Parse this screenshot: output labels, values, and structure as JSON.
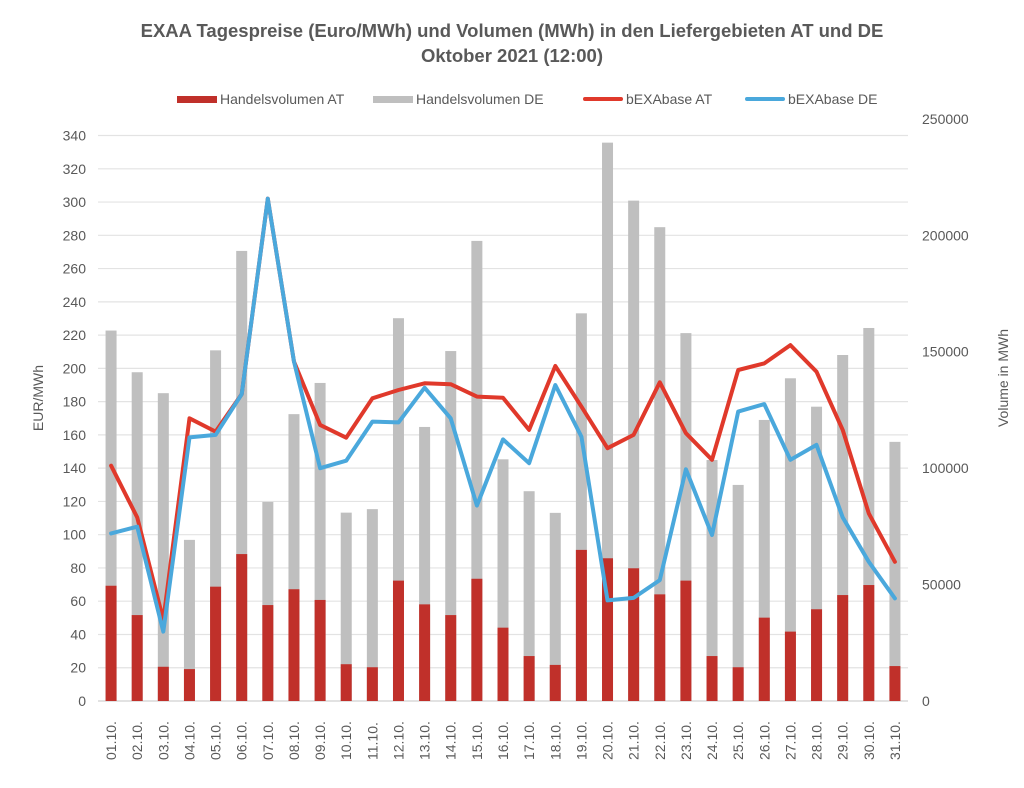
{
  "chart_data": {
    "type": "bar+line",
    "title": "EXAA Tagespreise (Euro/MWh) und Volumen (MWh) in den Liefergebieten AT und DE",
    "subtitle": "Oktober 2021 (12:00)",
    "ylabel_left": "EUR/MWh",
    "ylabel_right": "Volume in MWh",
    "ylim_left": [
      0,
      350
    ],
    "yticks_left": [
      0,
      20,
      40,
      60,
      80,
      100,
      120,
      140,
      160,
      180,
      200,
      220,
      240,
      260,
      280,
      300,
      320,
      340
    ],
    "ylim_right": [
      0,
      250000
    ],
    "yticks_right": [
      0,
      50000,
      100000,
      150000,
      200000,
      250000
    ],
    "grid": true,
    "legend_position": "top",
    "categories": [
      "01.10.",
      "02.10.",
      "03.10.",
      "04.10.",
      "05.10.",
      "06.10.",
      "07.10.",
      "08.10.",
      "09.10.",
      "10.10.",
      "11.10.",
      "12.10.",
      "13.10.",
      "14.10.",
      "15.10.",
      "16.10.",
      "17.10.",
      "18.10.",
      "19.10.",
      "20.10.",
      "21.10.",
      "22.10.",
      "23.10.",
      "24.10.",
      "25.10.",
      "26.10.",
      "27.10.",
      "28.10.",
      "29.10.",
      "30.10.",
      "31.10."
    ],
    "series": [
      {
        "name": "Handelsvolumen AT",
        "type": "bar",
        "axis": "right",
        "color": "#c0302a",
        "values": [
          49500,
          36900,
          14700,
          13700,
          49100,
          63100,
          41200,
          48000,
          43400,
          15800,
          14500,
          51700,
          41500,
          36900,
          52500,
          31500,
          19300,
          15500,
          64900,
          61300,
          57000,
          45800,
          51700,
          19300,
          14500,
          35800,
          29800,
          39400,
          45500,
          49800,
          15000
        ]
      },
      {
        "name": "Handelsvolumen DE",
        "type": "bar",
        "axis": "right",
        "color": "#bfbfbf",
        "values": [
          159100,
          141200,
          132200,
          69200,
          150600,
          193300,
          85500,
          123200,
          136600,
          80900,
          82400,
          164400,
          117700,
          150300,
          197600,
          103800,
          90100,
          80800,
          166500,
          239800,
          214900,
          203500,
          158000,
          103500,
          92800,
          120700,
          138600,
          126400,
          148600,
          160200,
          111300
        ]
      },
      {
        "name": "bEXAbase AT",
        "type": "line",
        "axis": "left",
        "color": "#e0392b",
        "values": [
          141.5,
          110.4,
          48.7,
          170,
          162,
          184.5,
          302,
          204,
          166,
          158.3,
          182,
          187,
          191,
          190.5,
          183,
          182.3,
          163,
          201.4,
          177,
          152,
          160,
          191.6,
          161,
          145,
          199,
          203,
          214,
          198,
          163,
          112.8,
          83.7
        ]
      },
      {
        "name": "bEXAbase DE",
        "type": "line",
        "axis": "left",
        "color": "#4aa8dc",
        "values": [
          100.8,
          104.8,
          41.7,
          158.5,
          160,
          184.5,
          302,
          204,
          140,
          144.5,
          168,
          167.5,
          188.4,
          170,
          117.5,
          157.3,
          143,
          190,
          159,
          60.5,
          62,
          72.7,
          139.3,
          99.8,
          174,
          178.5,
          145,
          154,
          110.4,
          83.7,
          61.7
        ]
      }
    ]
  }
}
